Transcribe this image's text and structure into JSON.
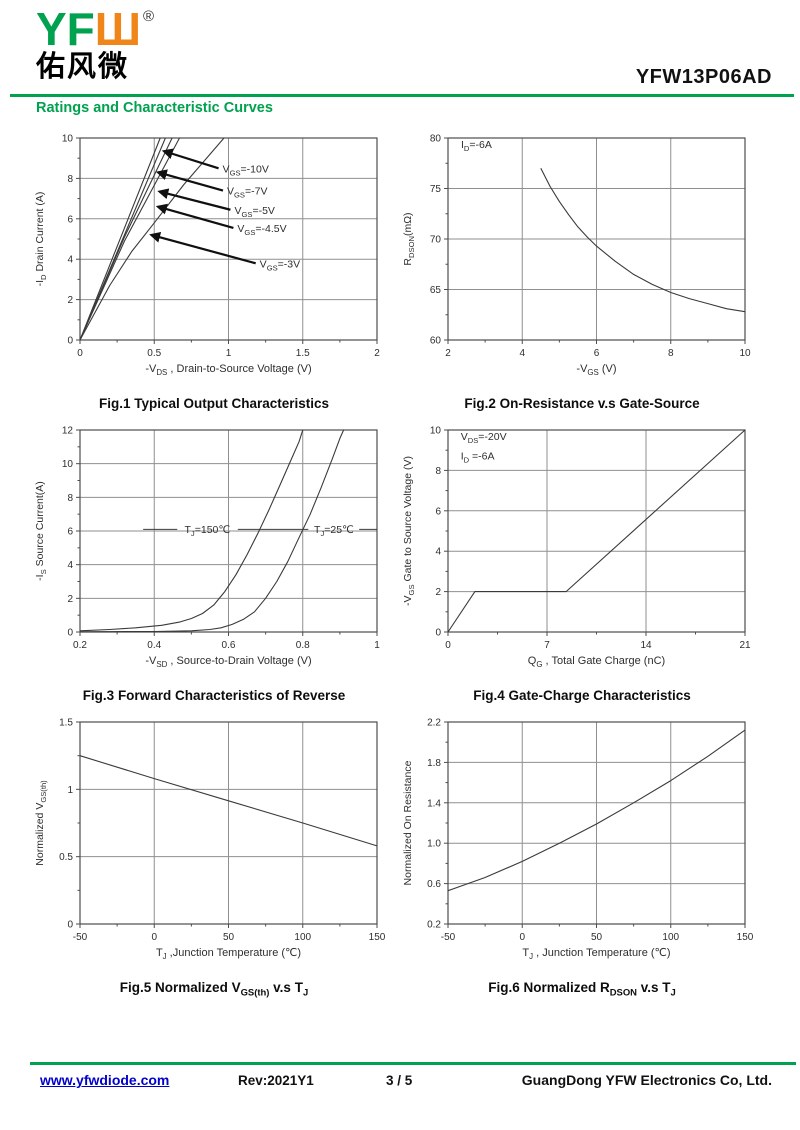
{
  "header": {
    "logo": {
      "latin_green": "YF",
      "latin_orange": "Ш",
      "registered": "®",
      "chinese": "佑风微"
    },
    "part_number": "YFW13P06AD",
    "section_title": "Ratings and Characteristic Curves"
  },
  "footer": {
    "website": "www.yfwdiode.com",
    "revision": "Rev:2021Y1",
    "page": "3 / 5",
    "company": "GuangDong YFW Electronics Co, Ltd."
  },
  "colors": {
    "brand_green": "#00A14F",
    "brand_orange": "#F08519",
    "link_blue": "#0000CC",
    "curve": "#3a3a3a",
    "grid": "#8f8f8f",
    "axis": "#4d4d4d",
    "text": "#2e2e2e",
    "arrow": "#101010"
  },
  "chart_data": [
    {
      "type": "line",
      "caption": "Fig.1 Typical Output Characteristics",
      "xlabel": "-V_{DS} , Drain-to-Source Voltage (V)",
      "ylabel": "-I_{D} Drain Current (A)",
      "xlim": [
        0,
        2
      ],
      "ylim": [
        0,
        10
      ],
      "xticks": [
        0,
        0.5,
        1,
        1.5,
        2
      ],
      "xtick_labels": [
        "0",
        "0.5",
        "1",
        "1.5",
        "2"
      ],
      "yticks": [
        0,
        2,
        4,
        6,
        8,
        10
      ],
      "ytick_labels": [
        "0",
        "2",
        "4",
        "6",
        "8",
        "10"
      ],
      "xminor": [
        0.25,
        0.75,
        1.25,
        1.75
      ],
      "yminor": [
        1,
        3,
        5,
        7,
        9
      ],
      "grid": true,
      "series": [
        {
          "name": "VGS=-10V",
          "points": [
            [
              0,
              0
            ],
            [
              0.54,
              10
            ]
          ]
        },
        {
          "name": "VGS=-7V",
          "points": [
            [
              0,
              0
            ],
            [
              0.575,
              10
            ]
          ]
        },
        {
          "name": "VGS=-5V",
          "points": [
            [
              0,
              0
            ],
            [
              0.3,
              5.1
            ],
            [
              0.62,
              10
            ]
          ]
        },
        {
          "name": "VGS=-4.5V",
          "points": [
            [
              0,
              0
            ],
            [
              0.3,
              4.9
            ],
            [
              0.67,
              10
            ]
          ]
        },
        {
          "name": "VGS=-3V",
          "points": [
            [
              0,
              0
            ],
            [
              0.2,
              2.7
            ],
            [
              0.35,
              4.4
            ],
            [
              0.5,
              5.8
            ],
            [
              0.7,
              7.7
            ],
            [
              0.97,
              10
            ]
          ]
        }
      ],
      "arrow_labels": [
        {
          "text": "V_{GS}=-10V",
          "tx": 0.96,
          "ty": 8.3,
          "ax": 0.565,
          "ay": 9.35
        },
        {
          "text": "V_{GS}=-7V",
          "tx": 0.99,
          "ty": 7.2,
          "ax": 0.525,
          "ay": 8.3
        },
        {
          "text": "V_{GS}=-5V",
          "tx": 1.04,
          "ty": 6.25,
          "ax": 0.535,
          "ay": 7.35
        },
        {
          "text": "V_{GS}=-4.5V",
          "tx": 1.06,
          "ty": 5.35,
          "ax": 0.525,
          "ay": 6.6
        },
        {
          "text": "V_{GS}=-3V",
          "tx": 1.21,
          "ty": 3.6,
          "ax": 0.48,
          "ay": 5.2
        }
      ]
    },
    {
      "type": "line",
      "caption": "Fig.2 On-Resistance v.s Gate-Source",
      "xlabel": "-V_{GS} (V)",
      "ylabel": "R_{DSON}(mΩ)",
      "xlim": [
        2,
        10
      ],
      "ylim": [
        60,
        80
      ],
      "xticks": [
        2,
        4,
        6,
        8,
        10
      ],
      "xtick_labels": [
        "2",
        "4",
        "6",
        "8",
        "10"
      ],
      "yticks": [
        60,
        65,
        70,
        75,
        80
      ],
      "ytick_labels": [
        "60",
        "65",
        "70",
        "75",
        "80"
      ],
      "xminor": [
        3,
        5,
        7,
        9
      ],
      "yminor": [
        62.5,
        67.5,
        72.5,
        77.5
      ],
      "grid": true,
      "annotations": [
        {
          "text": "I_{D}=-6A",
          "x": 2.35,
          "y": 79.0
        }
      ],
      "series": [
        {
          "name": "RDSON vs VGS",
          "points": [
            [
              4.5,
              77
            ],
            [
              4.75,
              75.2
            ],
            [
              5,
              73.7
            ],
            [
              5.25,
              72.4
            ],
            [
              5.5,
              71.2
            ],
            [
              5.75,
              70.2
            ],
            [
              6,
              69.3
            ],
            [
              6.5,
              67.8
            ],
            [
              7,
              66.5
            ],
            [
              7.5,
              65.5
            ],
            [
              8,
              64.7
            ],
            [
              8.5,
              64.1
            ],
            [
              9,
              63.6
            ],
            [
              9.5,
              63.1
            ],
            [
              10,
              62.8
            ]
          ]
        }
      ]
    },
    {
      "type": "line",
      "caption": "Fig.3 Forward Characteristics of Reverse",
      "xlabel": "-V_{SD} , Source-to-Drain Voltage (V)",
      "ylabel": "-I_{S} Source Current(A)",
      "xlim": [
        0.2,
        1
      ],
      "ylim": [
        0,
        12
      ],
      "xticks": [
        0.2,
        0.4,
        0.6,
        0.8,
        1
      ],
      "xtick_labels": [
        "0.2",
        "0.4",
        "0.6",
        "0.8",
        "1"
      ],
      "yticks": [
        0,
        2,
        4,
        6,
        8,
        10,
        12
      ],
      "ytick_labels": [
        "0",
        "2",
        "4",
        "6",
        "8",
        "10",
        "12"
      ],
      "xminor": [
        0.3,
        0.5,
        0.7,
        0.9
      ],
      "yminor": [
        1,
        3,
        5,
        7,
        9,
        11
      ],
      "grid": true,
      "series": [
        {
          "name": "TJ=150C",
          "points": [
            [
              0.2,
              0.07
            ],
            [
              0.28,
              0.15
            ],
            [
              0.35,
              0.25
            ],
            [
              0.42,
              0.4
            ],
            [
              0.47,
              0.6
            ],
            [
              0.5,
              0.8
            ],
            [
              0.53,
              1.1
            ],
            [
              0.56,
              1.6
            ],
            [
              0.59,
              2.4
            ],
            [
              0.62,
              3.4
            ],
            [
              0.65,
              4.6
            ],
            [
              0.68,
              5.9
            ],
            [
              0.71,
              7.3
            ],
            [
              0.74,
              8.8
            ],
            [
              0.77,
              10.3
            ],
            [
              0.79,
              11.3
            ],
            [
              0.8,
              12
            ]
          ]
        },
        {
          "name": "TJ=25C",
          "points": [
            [
              0.2,
              0.01
            ],
            [
              0.4,
              0.03
            ],
            [
              0.5,
              0.07
            ],
            [
              0.55,
              0.15
            ],
            [
              0.58,
              0.25
            ],
            [
              0.61,
              0.45
            ],
            [
              0.64,
              0.75
            ],
            [
              0.67,
              1.2
            ],
            [
              0.7,
              2
            ],
            [
              0.73,
              3
            ],
            [
              0.76,
              4.2
            ],
            [
              0.79,
              5.6
            ],
            [
              0.82,
              7
            ],
            [
              0.85,
              8.6
            ],
            [
              0.88,
              10.3
            ],
            [
              0.9,
              11.5
            ],
            [
              0.91,
              12
            ]
          ]
        }
      ],
      "leader": {
        "y": 6.1,
        "segments": [
          [
            0.37,
            0.462
          ],
          [
            0.625,
            0.815
          ],
          [
            0.952,
            1.0
          ]
        ],
        "texts": [
          {
            "text": "T_{J}=150℃",
            "x": 0.543
          },
          {
            "text": "T_{J}=25℃",
            "x": 0.884
          }
        ]
      }
    },
    {
      "type": "line",
      "caption": "Fig.4 Gate-Charge Characteristics",
      "xlabel": "Q_{G} , Total Gate Charge (nC)",
      "ylabel": "-V_{GS} Gate to Source Voltage (V)",
      "xlim": [
        0,
        21
      ],
      "ylim": [
        0,
        10
      ],
      "xticks": [
        0,
        7,
        14,
        21
      ],
      "xtick_labels": [
        "0",
        "7",
        "14",
        "21"
      ],
      "yticks": [
        0,
        2,
        4,
        6,
        8,
        10
      ],
      "ytick_labels": [
        "0",
        "2",
        "4",
        "6",
        "8",
        "10"
      ],
      "xminor": [
        3.5,
        10.5,
        17.5
      ],
      "yminor": [
        1,
        3,
        5,
        7,
        9
      ],
      "grid": true,
      "annotations": [
        {
          "text": "V_{DS}=-20V",
          "x": 0.9,
          "y": 9.5
        },
        {
          "text": "I_{D} =-6A",
          "x": 0.9,
          "y": 8.55
        }
      ],
      "series": [
        {
          "name": "gate charge",
          "points": [
            [
              0,
              0
            ],
            [
              1.9,
              2
            ],
            [
              8.35,
              2
            ],
            [
              21,
              10
            ]
          ]
        }
      ]
    },
    {
      "type": "line",
      "caption": "Fig.5 Normalized V_{GS(th)} v.s T_{J}",
      "xlabel": "T_{J} ,Junction Temperature (℃)",
      "ylabel": "Normalized V_{GS(th)}",
      "xlim": [
        -50,
        150
      ],
      "ylim": [
        0,
        1.5
      ],
      "xticks": [
        -50,
        0,
        50,
        100,
        150
      ],
      "xtick_labels": [
        "-50",
        "0",
        "50",
        "100",
        "150"
      ],
      "yticks": [
        0,
        0.5,
        1,
        1.5
      ],
      "ytick_labels": [
        "0",
        "0.5",
        "1",
        "1.5"
      ],
      "xminor": [
        -25,
        25,
        75,
        125
      ],
      "yminor": [
        0.25,
        0.75,
        1.25
      ],
      "grid": true,
      "series": [
        {
          "name": "normalized VGS(th)",
          "points": [
            [
              -50,
              1.25
            ],
            [
              0,
              1.08
            ],
            [
              50,
              0.915
            ],
            [
              100,
              0.75
            ],
            [
              150,
              0.58
            ]
          ]
        }
      ]
    },
    {
      "type": "line",
      "caption": "Fig.6 Normalized R_{DSON} v.s T_{J}",
      "xlabel": "T_{J} , Junction Temperature (℃)",
      "ylabel": "Normalized On Resistance",
      "xlim": [
        -50,
        150
      ],
      "ylim": [
        0.2,
        2.2
      ],
      "xticks": [
        -50,
        0,
        50,
        100,
        150
      ],
      "xtick_labels": [
        "-50",
        "0",
        "50",
        "100",
        "150"
      ],
      "yticks": [
        0.2,
        0.6,
        1.0,
        1.4,
        1.8,
        2.2
      ],
      "ytick_labels": [
        "0.2",
        "0.6",
        "1.0",
        "1.4",
        "1.8",
        "2.2"
      ],
      "xminor": [
        -25,
        25,
        75,
        125
      ],
      "yminor": [
        0.4,
        0.8,
        1.2,
        1.6,
        2.0
      ],
      "grid": true,
      "series": [
        {
          "name": "normalized RDSON",
          "points": [
            [
              -50,
              0.53
            ],
            [
              -25,
              0.66
            ],
            [
              0,
              0.82
            ],
            [
              25,
              1.0
            ],
            [
              50,
              1.19
            ],
            [
              75,
              1.4
            ],
            [
              100,
              1.62
            ],
            [
              125,
              1.86
            ],
            [
              150,
              2.12
            ]
          ]
        }
      ]
    }
  ]
}
